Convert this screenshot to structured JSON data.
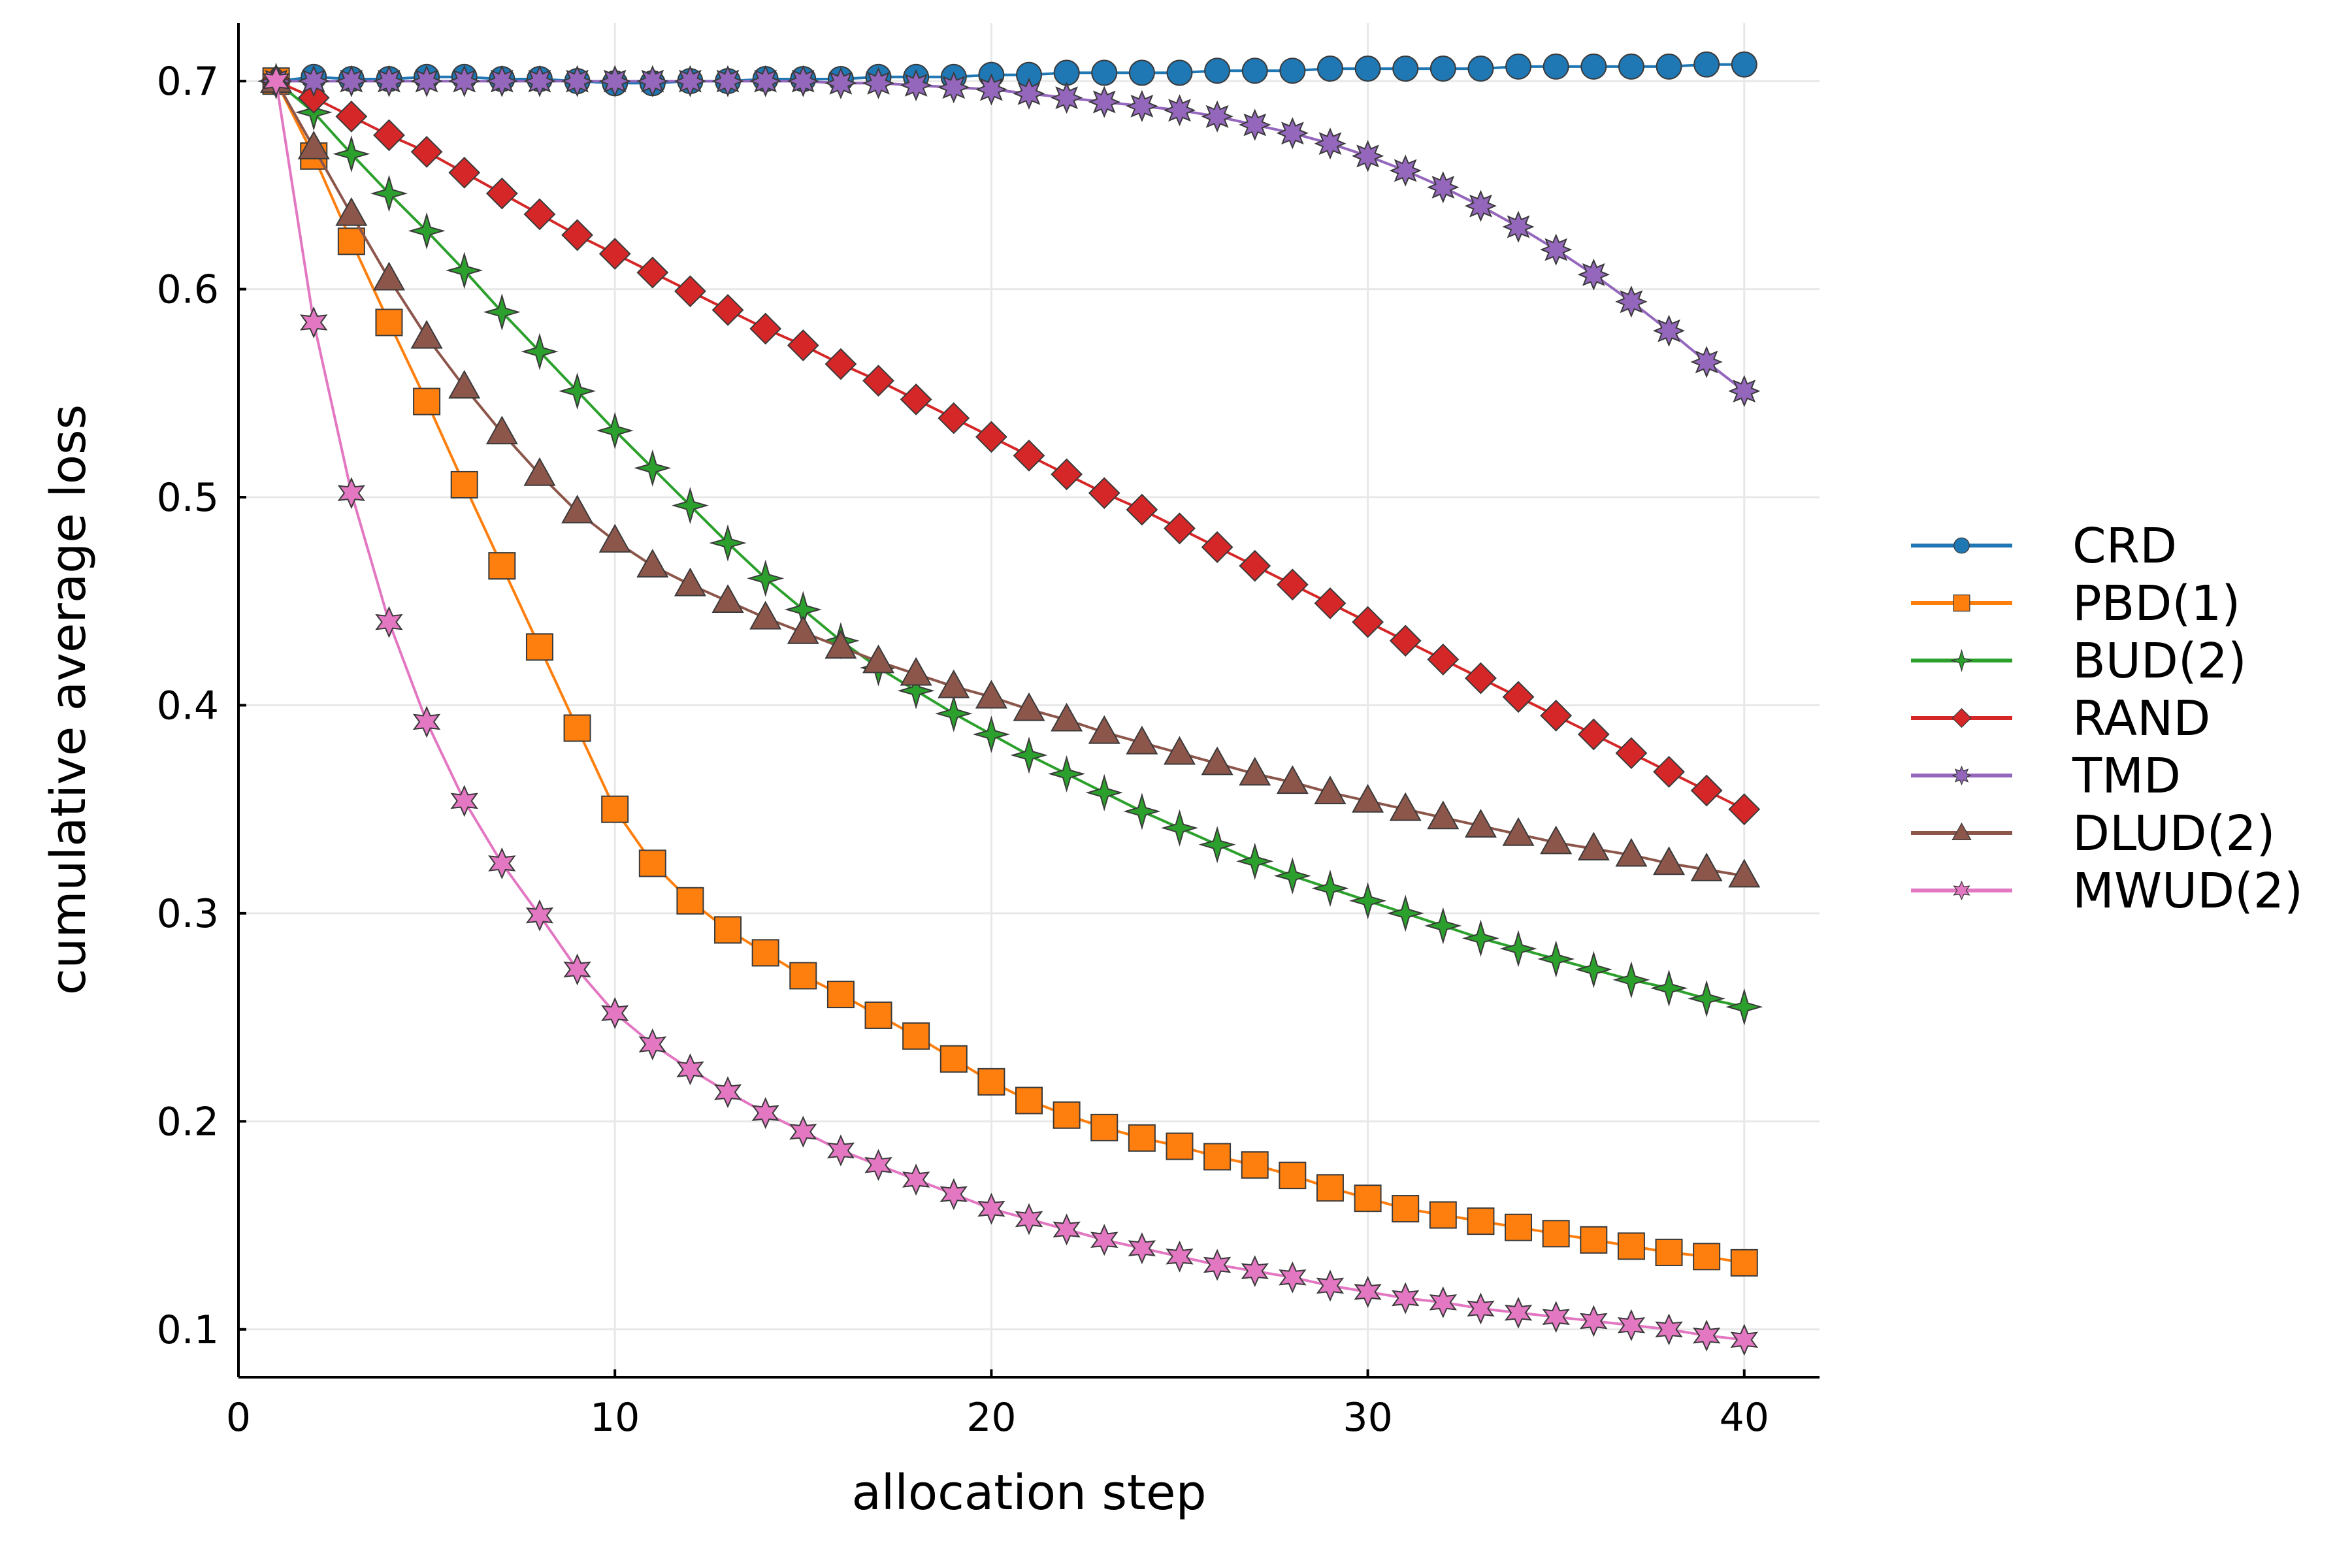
{
  "chart_data": {
    "type": "line",
    "title": "",
    "xlabel": "allocation step",
    "ylabel": "cumulative average loss",
    "xlim": [
      0,
      42
    ],
    "ylim": [
      0.077,
      0.728
    ],
    "xticks": [
      0,
      10,
      20,
      30,
      40
    ],
    "yticks": [
      0.1,
      0.2,
      0.3,
      0.4,
      0.5,
      0.6,
      0.7
    ],
    "xtick_labels": [
      "0",
      "10",
      "20",
      "30",
      "40"
    ],
    "ytick_labels": [
      "0.1",
      "0.2",
      "0.3",
      "0.4",
      "0.5",
      "0.6",
      "0.7"
    ],
    "grid": true,
    "legend_position": "right",
    "x": [
      1,
      2,
      3,
      4,
      5,
      6,
      7,
      8,
      9,
      10,
      11,
      12,
      13,
      14,
      15,
      16,
      17,
      18,
      19,
      20,
      21,
      22,
      23,
      24,
      25,
      26,
      27,
      28,
      29,
      30,
      31,
      32,
      33,
      34,
      35,
      36,
      37,
      38,
      39,
      40
    ],
    "series": [
      {
        "name": "CRD",
        "color": "#1f77b4",
        "marker": "circle",
        "values": [
          0.7,
          0.702,
          0.701,
          0.701,
          0.702,
          0.702,
          0.701,
          0.701,
          0.7,
          0.699,
          0.699,
          0.7,
          0.7,
          0.701,
          0.701,
          0.701,
          0.702,
          0.702,
          0.702,
          0.703,
          0.703,
          0.704,
          0.704,
          0.704,
          0.704,
          0.705,
          0.705,
          0.705,
          0.706,
          0.706,
          0.706,
          0.706,
          0.706,
          0.707,
          0.707,
          0.707,
          0.707,
          0.707,
          0.708,
          0.708
        ]
      },
      {
        "name": "PBD(1)",
        "color": "#ff7f0e",
        "marker": "square",
        "values": [
          0.7,
          0.664,
          0.623,
          0.584,
          0.546,
          0.506,
          0.467,
          0.428,
          0.389,
          0.35,
          0.324,
          0.306,
          0.292,
          0.281,
          0.27,
          0.261,
          0.251,
          0.241,
          0.23,
          0.219,
          0.21,
          0.203,
          0.197,
          0.192,
          0.188,
          0.183,
          0.179,
          0.174,
          0.168,
          0.163,
          0.158,
          0.155,
          0.152,
          0.149,
          0.146,
          0.143,
          0.14,
          0.137,
          0.135,
          0.132
        ]
      },
      {
        "name": "BUD(2)",
        "color": "#2ca02c",
        "marker": "star4",
        "values": [
          0.7,
          0.685,
          0.665,
          0.646,
          0.628,
          0.609,
          0.589,
          0.57,
          0.551,
          0.532,
          0.514,
          0.496,
          0.478,
          0.461,
          0.446,
          0.431,
          0.418,
          0.407,
          0.396,
          0.386,
          0.376,
          0.367,
          0.358,
          0.349,
          0.341,
          0.333,
          0.325,
          0.318,
          0.312,
          0.306,
          0.3,
          0.294,
          0.288,
          0.283,
          0.278,
          0.273,
          0.268,
          0.264,
          0.259,
          0.255
        ]
      },
      {
        "name": "RAND",
        "color": "#d62728",
        "marker": "diamond",
        "values": [
          0.7,
          0.692,
          0.683,
          0.674,
          0.666,
          0.656,
          0.646,
          0.636,
          0.626,
          0.617,
          0.608,
          0.599,
          0.59,
          0.581,
          0.573,
          0.564,
          0.556,
          0.547,
          0.538,
          0.529,
          0.52,
          0.511,
          0.502,
          0.494,
          0.485,
          0.476,
          0.467,
          0.458,
          0.449,
          0.44,
          0.431,
          0.422,
          0.413,
          0.404,
          0.395,
          0.386,
          0.377,
          0.368,
          0.359,
          0.35
        ]
      },
      {
        "name": "TMD",
        "color": "#9467bd",
        "marker": "star8",
        "values": [
          0.7,
          0.7,
          0.7,
          0.7,
          0.7,
          0.7,
          0.7,
          0.7,
          0.7,
          0.7,
          0.7,
          0.7,
          0.7,
          0.7,
          0.7,
          0.699,
          0.699,
          0.698,
          0.697,
          0.696,
          0.694,
          0.692,
          0.69,
          0.688,
          0.686,
          0.683,
          0.679,
          0.675,
          0.67,
          0.664,
          0.657,
          0.649,
          0.64,
          0.63,
          0.619,
          0.607,
          0.594,
          0.58,
          0.565,
          0.551
        ]
      },
      {
        "name": "DLUD(2)",
        "color": "#8c564b",
        "marker": "triangle",
        "values": [
          0.7,
          0.668,
          0.636,
          0.605,
          0.577,
          0.553,
          0.531,
          0.511,
          0.493,
          0.479,
          0.467,
          0.458,
          0.45,
          0.442,
          0.435,
          0.428,
          0.421,
          0.415,
          0.409,
          0.404,
          0.398,
          0.393,
          0.387,
          0.382,
          0.377,
          0.372,
          0.367,
          0.363,
          0.358,
          0.354,
          0.35,
          0.346,
          0.342,
          0.338,
          0.334,
          0.331,
          0.328,
          0.324,
          0.321,
          0.318
        ]
      },
      {
        "name": "MWUD(2)",
        "color": "#e377c2",
        "marker": "star6",
        "values": [
          0.7,
          0.584,
          0.502,
          0.44,
          0.392,
          0.354,
          0.324,
          0.299,
          0.273,
          0.252,
          0.237,
          0.225,
          0.214,
          0.204,
          0.195,
          0.186,
          0.179,
          0.172,
          0.165,
          0.158,
          0.153,
          0.148,
          0.143,
          0.139,
          0.135,
          0.131,
          0.128,
          0.125,
          0.121,
          0.118,
          0.115,
          0.113,
          0.11,
          0.108,
          0.106,
          0.104,
          0.102,
          0.1,
          0.097,
          0.095
        ]
      }
    ]
  }
}
